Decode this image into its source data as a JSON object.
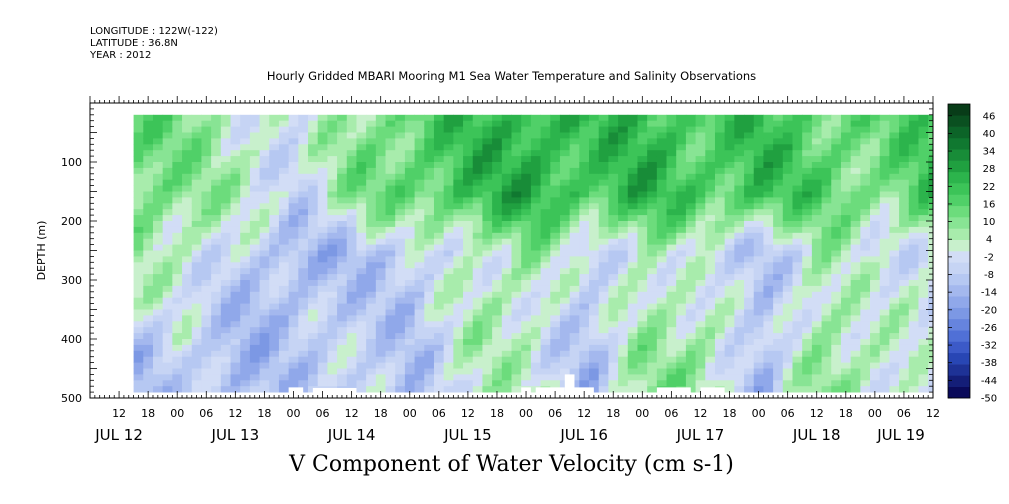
{
  "meta": {
    "longitude": "LONGITUDE : 122W(-122)",
    "latitude": "LATITUDE : 36.8N",
    "year": "YEAR : 2012"
  },
  "chart_data": {
    "type": "heatmap",
    "title": "Hourly Gridded MBARI Mooring M1 Sea Water Temperature and Salinity Observations",
    "variable_title": "V Component of Water Velocity (cm s-1)",
    "ylabel": "DEPTH (m)",
    "y_reversed": true,
    "ylim": [
      500,
      0
    ],
    "y_ticks": [
      100,
      200,
      300,
      400,
      500
    ],
    "x_start": "2012-07-12 06:00",
    "x_end": "2012-07-19 12:00",
    "hour_ticks": [
      "12",
      "18",
      "00",
      "06",
      "12",
      "18",
      "00",
      "06",
      "12",
      "18",
      "00",
      "06",
      "12",
      "18",
      "00",
      "06",
      "12",
      "18",
      "00",
      "06",
      "12",
      "18",
      "00",
      "06",
      "12",
      "18",
      "00",
      "06",
      "12",
      "18",
      "00",
      "06"
    ],
    "date_labels": [
      "JUL 12",
      "JUL 13",
      "JUL 14",
      "JUL 15",
      "JUL 16",
      "JUL 17",
      "JUL 18",
      "JUL 19"
    ],
    "data_extent": {
      "x_start": "2012-07-12 15:00",
      "x_end": "2012-07-19 12:00",
      "depth_top": 20,
      "depth_bottom": 490
    },
    "colorbar": {
      "labels": [
        "46",
        "40",
        "34",
        "28",
        "22",
        "16",
        "10",
        "4",
        "-2",
        "-8",
        "-14",
        "-20",
        "-26",
        "-32",
        "-38",
        "-44",
        "-50"
      ],
      "min": -50,
      "max": 50,
      "step": 3,
      "colors_low_to_high": [
        "#0a0a5a",
        "#141e78",
        "#1e3296",
        "#2846b4",
        "#3c5ac8",
        "#5070d6",
        "#6684de",
        "#7c98e4",
        "#90a8ea",
        "#a4b8ee",
        "#b6c8f2",
        "#c6d4f4",
        "#d2ddf6",
        "#c8f0cc",
        "#a8ecac",
        "#88e494",
        "#6cdc7c",
        "#50d068",
        "#3cc458",
        "#2cb44c",
        "#20a040",
        "#188c38",
        "#107830",
        "#0c6428",
        "#0a5020",
        "#083c18"
      ]
    },
    "field_summary": "v-velocity field (cm/s): negative (blue) and positive (green) bands alternating in time",
    "series": [
      {
        "time": "JUL 12 18",
        "upper_0_150m": 14,
        "mid_150_350m": 6,
        "lower_350_490m": -10
      },
      {
        "time": "JUL 13 00",
        "upper_0_150m": 10,
        "mid_150_350m": 4,
        "lower_350_490m": -6
      },
      {
        "time": "JUL 13 12",
        "upper_0_150m": 4,
        "mid_150_350m": -6,
        "lower_350_490m": -14
      },
      {
        "time": "JUL 14 00",
        "upper_0_150m": -4,
        "mid_150_350m": -14,
        "lower_350_490m": -8
      },
      {
        "time": "JUL 14 12",
        "upper_0_150m": 10,
        "mid_150_350m": -10,
        "lower_350_490m": -6
      },
      {
        "time": "JUL 15 00",
        "upper_0_150m": 16,
        "mid_150_350m": -8,
        "lower_350_490m": -10
      },
      {
        "time": "JUL 15 12",
        "upper_0_150m": 22,
        "mid_150_350m": 2,
        "lower_350_490m": 4
      },
      {
        "time": "JUL 16 00",
        "upper_0_150m": 26,
        "mid_150_350m": 8,
        "lower_350_490m": 2
      },
      {
        "time": "JUL 16 12",
        "upper_0_150m": 20,
        "mid_150_350m": -8,
        "lower_350_490m": -12
      },
      {
        "time": "JUL 17 00",
        "upper_0_150m": 24,
        "mid_150_350m": 6,
        "lower_350_490m": 8
      },
      {
        "time": "JUL 17 12",
        "upper_0_150m": 18,
        "mid_150_350m": -6,
        "lower_350_490m": 10
      },
      {
        "time": "JUL 18 00",
        "upper_0_150m": 22,
        "mid_150_350m": -10,
        "lower_350_490m": -14
      },
      {
        "time": "JUL 18 12",
        "upper_0_150m": 16,
        "mid_150_350m": 6,
        "lower_350_490m": 10
      },
      {
        "time": "JUL 19 00",
        "upper_0_150m": 12,
        "mid_150_350m": -6,
        "lower_350_490m": 4
      },
      {
        "time": "JUL 19 12",
        "upper_0_150m": 20,
        "mid_150_350m": 2,
        "lower_350_490m": -4
      }
    ]
  }
}
